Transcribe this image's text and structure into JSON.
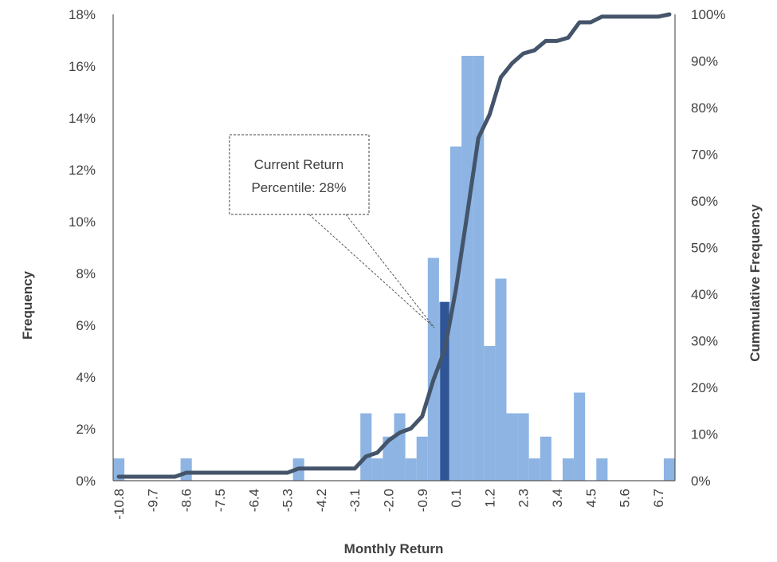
{
  "chart_data": {
    "type": "bar",
    "xlabel": "Monthly Return",
    "ylabel_left": "Frequency",
    "ylabel_right": "Cummulative Frequency",
    "ylim_left": [
      0,
      18
    ],
    "ylim_right": [
      0,
      100
    ],
    "left_ticks": [
      "0%",
      "2%",
      "4%",
      "6%",
      "8%",
      "10%",
      "12%",
      "14%",
      "16%",
      "18%"
    ],
    "right_ticks": [
      "0%",
      "10%",
      "20%",
      "30%",
      "40%",
      "50%",
      "60%",
      "70%",
      "80%",
      "90%",
      "100%"
    ],
    "x_tick_labels": [
      "-10.8",
      "-9.7",
      "-8.6",
      "-7.5",
      "-6.4",
      "-5.3",
      "-4.2",
      "-3.1",
      "-2.0",
      "-0.9",
      "0.1",
      "1.2",
      "2.3",
      "3.4",
      "4.5",
      "5.6",
      "6.7"
    ],
    "bins": [
      -10.8,
      -10.4,
      -10.1,
      -9.7,
      -9.3,
      -9.0,
      -8.6,
      -8.2,
      -7.9,
      -7.5,
      -7.1,
      -6.8,
      -6.4,
      -6.0,
      -5.7,
      -5.3,
      -4.9,
      -4.6,
      -4.2,
      -3.8,
      -3.5,
      -3.1,
      -2.7,
      -2.4,
      -2.0,
      -1.6,
      -1.3,
      -0.9,
      -0.5,
      -0.2,
      0.1,
      0.5,
      0.8,
      1.2,
      1.6,
      1.9,
      2.3,
      2.7,
      3.0,
      3.4,
      3.8,
      4.1,
      4.5,
      4.9,
      5.2,
      5.6,
      6.0,
      6.3,
      6.7,
      7.1
    ],
    "series": [
      {
        "name": "Frequency",
        "type": "bar",
        "axis": "left",
        "color": "#8db4e3",
        "values": [
          0.86,
          0,
          0,
          0,
          0,
          0,
          0.86,
          0,
          0,
          0,
          0,
          0,
          0,
          0,
          0,
          0,
          0.86,
          0,
          0,
          0,
          0,
          0,
          2.6,
          0.86,
          1.7,
          2.6,
          0.86,
          1.7,
          8.6,
          6.9,
          12.9,
          16.4,
          16.4,
          5.2,
          7.8,
          2.6,
          2.6,
          0.86,
          1.7,
          0,
          0.86,
          3.4,
          0,
          0.86,
          0,
          0,
          0,
          0,
          0,
          0.86
        ]
      },
      {
        "name": "Cummulative Frequency",
        "type": "line",
        "axis": "right",
        "color": "#44546a",
        "values": [
          0.86,
          0.86,
          0.86,
          0.86,
          0.86,
          0.86,
          1.7,
          1.7,
          1.7,
          1.7,
          1.7,
          1.7,
          1.7,
          1.7,
          1.7,
          1.7,
          2.6,
          2.6,
          2.6,
          2.6,
          2.6,
          2.6,
          5.2,
          6.0,
          8.6,
          10.3,
          11.2,
          13.8,
          21.6,
          28.0,
          41.0,
          57.0,
          73.5,
          78.5,
          86.5,
          89.5,
          91.6,
          92.3,
          94.3,
          94.3,
          95.0,
          98.3,
          98.3,
          99.5,
          99.5,
          99.5,
          99.5,
          99.5,
          99.5,
          100
        ]
      }
    ],
    "highlight": {
      "bin_index": 29,
      "color": "#2f5597"
    },
    "annotation": {
      "line1": "Current Return",
      "line2": "Percentile: 28%"
    },
    "grid": false,
    "legend": "none"
  }
}
